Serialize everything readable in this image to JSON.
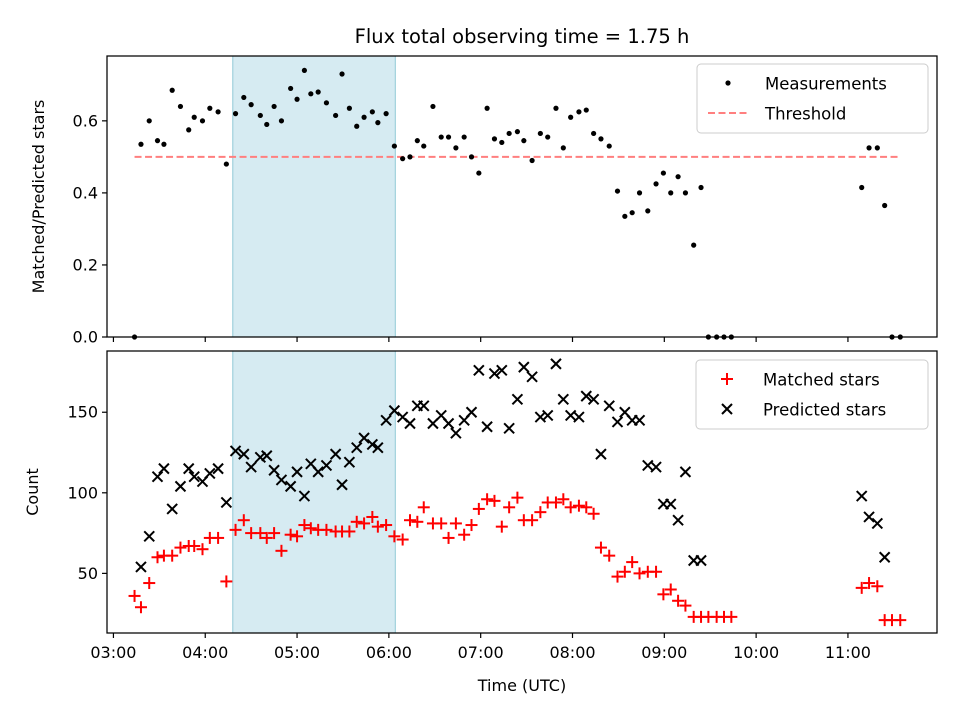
{
  "title": "Flux total observing time = 1.75 h",
  "colors": {
    "measurement": "#000000",
    "threshold": "#ff7f7f",
    "matched": "#ff0000",
    "predicted": "#000000",
    "shade": "#add8e6"
  },
  "chart_data": [
    {
      "type": "scatter",
      "ylabel": "Matched/Predicted stars",
      "ylim": [
        0,
        0.78
      ],
      "yticks": [
        "0.0",
        "0.2",
        "0.4",
        "0.6"
      ],
      "ytick_values": [
        0,
        0.2,
        0.4,
        0.6
      ],
      "xlim_hours": [
        2.93,
        11.97
      ],
      "shaded_span_hours": [
        4.3,
        6.07
      ],
      "legend": {
        "position": "upper right",
        "entries": [
          "Measurements",
          "Threshold"
        ]
      },
      "threshold": {
        "value": 0.5,
        "x_from_hours": 3.23,
        "x_to_hours": 11.57
      },
      "series": [
        {
          "name": "Measurements",
          "marker": "dot",
          "x_hours": [
            3.23,
            3.3,
            3.39,
            3.48,
            3.55,
            3.64,
            3.73,
            3.82,
            3.88,
            3.97,
            4.05,
            4.14,
            4.23,
            4.33,
            4.42,
            4.5,
            4.6,
            4.67,
            4.75,
            4.83,
            4.93,
            5.0,
            5.08,
            5.15,
            5.23,
            5.32,
            5.42,
            5.49,
            5.57,
            5.65,
            5.73,
            5.82,
            5.88,
            5.97,
            6.06,
            6.15,
            6.23,
            6.31,
            6.38,
            6.48,
            6.57,
            6.65,
            6.73,
            6.82,
            6.9,
            6.98,
            7.07,
            7.15,
            7.23,
            7.31,
            7.4,
            7.47,
            7.56,
            7.65,
            7.73,
            7.82,
            7.9,
            7.98,
            8.07,
            8.15,
            8.23,
            8.31,
            8.4,
            8.49,
            8.57,
            8.65,
            8.73,
            8.82,
            8.91,
            8.99,
            9.07,
            9.15,
            9.23,
            9.32,
            9.4,
            9.48,
            9.57,
            9.65,
            9.73,
            11.15,
            11.23,
            11.32,
            11.4,
            11.48,
            11.57
          ],
          "y": [
            0.0,
            0.535,
            0.6,
            0.545,
            0.535,
            0.685,
            0.64,
            0.575,
            0.61,
            0.6,
            0.635,
            0.625,
            0.48,
            0.62,
            0.665,
            0.645,
            0.615,
            0.59,
            0.64,
            0.6,
            0.69,
            0.66,
            0.74,
            0.675,
            0.68,
            0.65,
            0.615,
            0.73,
            0.635,
            0.585,
            0.61,
            0.625,
            0.595,
            0.62,
            0.53,
            0.495,
            0.5,
            0.545,
            0.53,
            0.64,
            0.555,
            0.555,
            0.525,
            0.555,
            0.5,
            0.455,
            0.635,
            0.55,
            0.54,
            0.565,
            0.57,
            0.545,
            0.49,
            0.565,
            0.555,
            0.635,
            0.525,
            0.61,
            0.625,
            0.63,
            0.565,
            0.55,
            0.53,
            0.405,
            0.335,
            0.345,
            0.4,
            0.35,
            0.425,
            0.455,
            0.4,
            0.445,
            0.4,
            0.255,
            0.415,
            0.0,
            0.0,
            0.0,
            0.0,
            0.415,
            0.525,
            0.525,
            0.365,
            0.0,
            0.0
          ]
        }
      ]
    },
    {
      "type": "scatter",
      "xlabel": "Time (UTC)",
      "ylabel": "Count",
      "ylim": [
        13,
        188
      ],
      "yticks": [
        "50",
        "100",
        "150"
      ],
      "ytick_values": [
        50,
        100,
        150
      ],
      "xlim_hours": [
        2.93,
        11.97
      ],
      "xticks": [
        "03:00",
        "04:00",
        "05:00",
        "06:00",
        "07:00",
        "08:00",
        "09:00",
        "10:00",
        "11:00"
      ],
      "xtick_hours": [
        3,
        4,
        5,
        6,
        7,
        8,
        9,
        10,
        11
      ],
      "shaded_span_hours": [
        4.3,
        6.07
      ],
      "legend": {
        "position": "upper right",
        "entries": [
          "Matched stars",
          "Predicted stars"
        ]
      },
      "series": [
        {
          "name": "Matched stars",
          "marker": "plus",
          "x_hours": [
            3.23,
            3.3,
            3.39,
            3.48,
            3.55,
            3.64,
            3.73,
            3.82,
            3.88,
            3.97,
            4.05,
            4.14,
            4.23,
            4.33,
            4.42,
            4.5,
            4.6,
            4.67,
            4.75,
            4.83,
            4.93,
            5.0,
            5.08,
            5.15,
            5.23,
            5.32,
            5.42,
            5.49,
            5.57,
            5.65,
            5.73,
            5.82,
            5.88,
            5.97,
            6.06,
            6.15,
            6.23,
            6.31,
            6.38,
            6.48,
            6.57,
            6.65,
            6.73,
            6.82,
            6.9,
            6.98,
            7.07,
            7.15,
            7.23,
            7.31,
            7.4,
            7.47,
            7.56,
            7.65,
            7.73,
            7.82,
            7.9,
            7.98,
            8.07,
            8.15,
            8.23,
            8.31,
            8.4,
            8.49,
            8.57,
            8.65,
            8.73,
            8.82,
            8.91,
            8.99,
            9.07,
            9.15,
            9.23,
            9.32,
            9.4,
            9.48,
            9.57,
            9.65,
            9.73,
            11.15,
            11.23,
            11.32,
            11.4,
            11.48,
            11.57
          ],
          "y": [
            36,
            29,
            44,
            60,
            61,
            61,
            66,
            67,
            67,
            65,
            72,
            72,
            45,
            77,
            83,
            75,
            75,
            72,
            75,
            64,
            74,
            73,
            80,
            78,
            77,
            77,
            76,
            76,
            76,
            82,
            81,
            85,
            79,
            80,
            73,
            71,
            83,
            82,
            91,
            81,
            81,
            72,
            81,
            74,
            80,
            90,
            96,
            95,
            79,
            91,
            97,
            83,
            83,
            88,
            94,
            94,
            96,
            91,
            92,
            91,
            87,
            66,
            61,
            48,
            51,
            57,
            50,
            51,
            51,
            37,
            40,
            33,
            30,
            23,
            23,
            23,
            23,
            23,
            23,
            41,
            44,
            42,
            21,
            21,
            21
          ]
        },
        {
          "name": "Predicted stars",
          "marker": "x",
          "x_hours": [
            3.3,
            3.39,
            3.48,
            3.55,
            3.64,
            3.73,
            3.82,
            3.88,
            3.97,
            4.05,
            4.14,
            4.23,
            4.33,
            4.42,
            4.5,
            4.6,
            4.67,
            4.75,
            4.83,
            4.93,
            5.0,
            5.08,
            5.15,
            5.23,
            5.32,
            5.42,
            5.49,
            5.57,
            5.65,
            5.73,
            5.82,
            5.88,
            5.97,
            6.06,
            6.15,
            6.23,
            6.31,
            6.38,
            6.48,
            6.57,
            6.65,
            6.73,
            6.82,
            6.9,
            6.98,
            7.07,
            7.15,
            7.23,
            7.31,
            7.4,
            7.47,
            7.56,
            7.65,
            7.73,
            7.82,
            7.9,
            7.98,
            8.07,
            8.15,
            8.23,
            8.31,
            8.4,
            8.49,
            8.57,
            8.65,
            8.73,
            8.82,
            8.91,
            8.99,
            9.07,
            9.15,
            9.23,
            9.32,
            9.4,
            11.15,
            11.23,
            11.32,
            11.4
          ],
          "y": [
            54,
            73,
            110,
            115,
            90,
            104,
            115,
            110,
            107,
            112,
            115,
            94,
            126,
            124,
            116,
            122,
            123,
            114,
            108,
            104,
            113,
            98,
            118,
            113,
            117,
            124,
            105,
            119,
            128,
            134,
            130,
            128,
            145,
            151,
            147,
            143,
            154,
            154,
            143,
            148,
            143,
            137,
            145,
            150,
            176,
            141,
            174,
            176,
            140,
            158,
            178,
            172,
            147,
            148,
            180,
            158,
            148,
            147,
            160,
            158,
            124,
            154,
            144,
            150,
            145,
            145,
            117,
            116,
            93,
            93,
            83,
            113,
            58,
            58,
            98,
            85,
            81,
            60
          ]
        }
      ]
    }
  ]
}
